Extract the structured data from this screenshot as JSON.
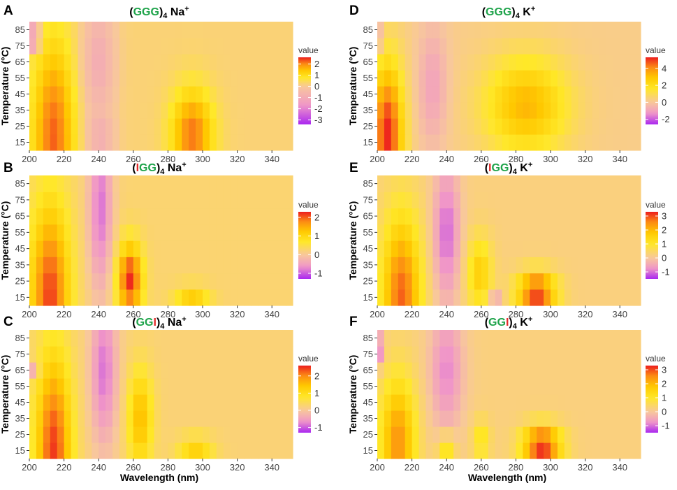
{
  "chart_data": [
    {
      "panel": "A",
      "type": "heatmap",
      "title_seq": [
        [
          "(",
          "#000000"
        ],
        [
          "GGG",
          "#1ea34a"
        ],
        [
          ")",
          "#000000"
        ]
      ],
      "title_sub": "4",
      "title_ion": "Na",
      "title_sup": "+",
      "xlabel": "",
      "ylabel": "Temperature (°C)",
      "x_ticks": [
        200,
        220,
        240,
        260,
        280,
        300,
        320,
        340
      ],
      "x_range": [
        200,
        350
      ],
      "y_ticks": [
        15,
        25,
        35,
        45,
        55,
        65,
        75,
        85
      ],
      "legend_title": "value",
      "scale_range": [
        -3.4,
        2.6
      ],
      "legend_ticks": [
        2,
        1,
        0,
        -1,
        -2,
        -3
      ],
      "features": [
        {
          "wl": 214,
          "w": 12,
          "tc": 18,
          "th": 62,
          "v": 2.0
        },
        {
          "wl": 202,
          "w": 4,
          "tc": 80,
          "th": 6,
          "v": -3.0
        },
        {
          "wl": 240,
          "w": 9,
          "tc": 65,
          "th": 38,
          "v": -1.2
        },
        {
          "wl": 241,
          "w": 8,
          "tc": 18,
          "th": 12,
          "v": -0.9
        },
        {
          "wl": 294,
          "w": 12,
          "tc": 20,
          "th": 28,
          "v": 1.9
        }
      ]
    },
    {
      "panel": "B",
      "type": "heatmap",
      "title_seq": [
        [
          "(",
          "#000000"
        ],
        [
          "I",
          "#e32a2a"
        ],
        [
          "GG",
          "#1ea34a"
        ],
        [
          ")",
          "#000000"
        ]
      ],
      "title_sub": "4",
      "title_ion": "Na",
      "title_sup": "+",
      "xlabel": "",
      "ylabel": "Temperature (°C)",
      "x_ticks": [
        200,
        220,
        240,
        260,
        280,
        300,
        320,
        340
      ],
      "x_range": [
        200,
        350
      ],
      "y_ticks": [
        15,
        25,
        35,
        45,
        55,
        65,
        75,
        85
      ],
      "legend_title": "value",
      "scale_range": [
        -1.3,
        2.3
      ],
      "legend_ticks": [
        2,
        1,
        0,
        -1
      ],
      "features": [
        {
          "wl": 212,
          "w": 11,
          "tc": 15,
          "th": 58,
          "v": 1.9
        },
        {
          "wl": 241,
          "w": 7,
          "tc": 70,
          "th": 55,
          "v": -1.1
        },
        {
          "wl": 258,
          "w": 7,
          "tc": 26,
          "th": 22,
          "v": 2.0
        },
        {
          "wl": 294,
          "w": 10,
          "tc": 14,
          "th": 8,
          "v": 0.9
        }
      ]
    },
    {
      "panel": "C",
      "type": "heatmap",
      "title_seq": [
        [
          "(",
          "#000000"
        ],
        [
          "GG",
          "#1ea34a"
        ],
        [
          "I",
          "#e32a2a"
        ],
        [
          ")",
          "#000000"
        ]
      ],
      "title_sub": "4",
      "title_ion": "Na",
      "title_sup": "+",
      "xlabel": "Wavelength (nm)",
      "ylabel": "Temperature (°C)",
      "x_ticks": [
        200,
        220,
        240,
        260,
        280,
        300,
        320,
        340
      ],
      "x_range": [
        200,
        350
      ],
      "y_ticks": [
        15,
        25,
        35,
        45,
        55,
        65,
        75,
        85
      ],
      "legend_title": "value",
      "scale_range": [
        -1.3,
        2.6
      ],
      "legend_ticks": [
        2,
        1,
        0,
        -1
      ],
      "features": [
        {
          "wl": 214,
          "w": 10,
          "tc": 15,
          "th": 60,
          "v": 2.2
        },
        {
          "wl": 243,
          "w": 8,
          "tc": 65,
          "th": 50,
          "v": -1.1
        },
        {
          "wl": 264,
          "w": 7,
          "tc": 35,
          "th": 30,
          "v": 1.3
        },
        {
          "wl": 202,
          "w": 4,
          "tc": 66,
          "th": 6,
          "v": -0.8
        },
        {
          "wl": 296,
          "w": 10,
          "tc": 16,
          "th": 8,
          "v": 1.0
        }
      ]
    },
    {
      "panel": "D",
      "type": "heatmap",
      "title_seq": [
        [
          "(",
          "#000000"
        ],
        [
          "GGG",
          "#1ea34a"
        ],
        [
          ")",
          "#000000"
        ]
      ],
      "title_sub": "4",
      "title_ion": "K",
      "title_sup": "+",
      "xlabel": "",
      "ylabel": "Temperature (°C)",
      "x_ticks": [
        200,
        220,
        240,
        260,
        280,
        300,
        320,
        340
      ],
      "x_range": [
        200,
        350
      ],
      "y_ticks": [
        15,
        25,
        35,
        45,
        55,
        65,
        75,
        85
      ],
      "legend_title": "value",
      "scale_range": [
        -2.6,
        5.3
      ],
      "legend_ticks": [
        4,
        2,
        0,
        -2
      ],
      "features": [
        {
          "wl": 206,
          "w": 9,
          "tc": 20,
          "th": 45,
          "v": 5.0
        },
        {
          "wl": 201,
          "w": 3,
          "tc": 80,
          "th": 8,
          "v": -1.5
        },
        {
          "wl": 232,
          "w": 9,
          "tc": 50,
          "th": 40,
          "v": -1.2
        },
        {
          "wl": 286,
          "w": 24,
          "tc": 38,
          "th": 30,
          "v": 3.0
        }
      ]
    },
    {
      "panel": "E",
      "type": "heatmap",
      "title_seq": [
        [
          "(",
          "#000000"
        ],
        [
          "I",
          "#e32a2a"
        ],
        [
          "GG",
          "#1ea34a"
        ],
        [
          ")",
          "#000000"
        ]
      ],
      "title_sub": "4",
      "title_ion": "K",
      "title_sup": "+",
      "xlabel": "",
      "ylabel": "Temperature (°C)",
      "x_ticks": [
        200,
        220,
        240,
        260,
        280,
        300,
        320,
        340
      ],
      "x_range": [
        200,
        350
      ],
      "y_ticks": [
        15,
        25,
        35,
        45,
        55,
        65,
        75,
        85
      ],
      "legend_title": "value",
      "scale_range": [
        -1.5,
        3.3
      ],
      "legend_ticks": [
        3,
        2,
        1,
        0,
        -1
      ],
      "features": [
        {
          "wl": 214,
          "w": 11,
          "tc": 15,
          "th": 50,
          "v": 2.6
        },
        {
          "wl": 240,
          "w": 8,
          "tc": 55,
          "th": 45,
          "v": -1.3
        },
        {
          "wl": 259,
          "w": 7,
          "tc": 30,
          "th": 22,
          "v": 1.4
        },
        {
          "wl": 268,
          "w": 4,
          "tc": 15,
          "th": 5,
          "v": -0.8
        },
        {
          "wl": 292,
          "w": 11,
          "tc": 18,
          "th": 12,
          "v": 3.0
        }
      ]
    },
    {
      "panel": "F",
      "type": "heatmap",
      "title_seq": [
        [
          "(",
          "#000000"
        ],
        [
          "GG",
          "#1ea34a"
        ],
        [
          "I",
          "#e32a2a"
        ],
        [
          ")",
          "#000000"
        ]
      ],
      "title_sub": "4",
      "title_ion": "K",
      "title_sup": "+",
      "xlabel": "Wavelength (nm)",
      "ylabel": "Temperature (°C)",
      "x_ticks": [
        200,
        220,
        240,
        260,
        280,
        300,
        320,
        340
      ],
      "x_range": [
        200,
        350
      ],
      "y_ticks": [
        15,
        25,
        35,
        45,
        55,
        65,
        75,
        85
      ],
      "legend_title": "value",
      "scale_range": [
        -1.5,
        3.3
      ],
      "legend_ticks": [
        3,
        2,
        1,
        0,
        -1
      ],
      "features": [
        {
          "wl": 212,
          "w": 10,
          "tc": 20,
          "th": 40,
          "v": 2.2
        },
        {
          "wl": 201,
          "w": 3,
          "tc": 78,
          "th": 10,
          "v": -1.3
        },
        {
          "wl": 240,
          "w": 10,
          "tc": 65,
          "th": 40,
          "v": -1.1
        },
        {
          "wl": 240,
          "w": 5,
          "tc": 17,
          "th": 8,
          "v": 1.3
        },
        {
          "wl": 260,
          "w": 5,
          "tc": 22,
          "th": 12,
          "v": 1.0
        },
        {
          "wl": 295,
          "w": 11,
          "tc": 18,
          "th": 12,
          "v": 3.1
        }
      ]
    }
  ]
}
